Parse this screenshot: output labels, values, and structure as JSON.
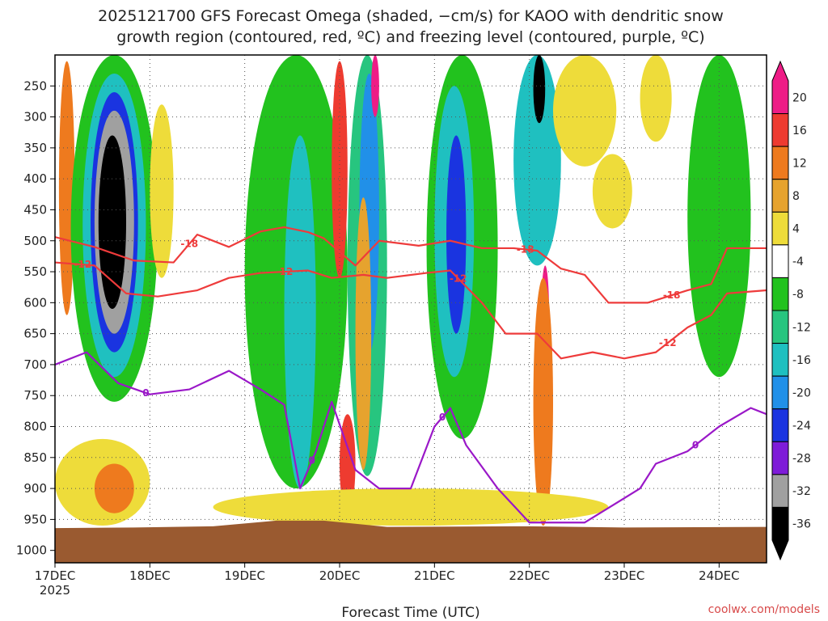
{
  "chart_data": {
    "type": "heatmap",
    "title_lines": [
      "2025121700 GFS Forecast Omega (shaded, −cm/s) for KAOO with dendritic snow",
      "growth region (contoured, red, ºC) and freezing level (contoured, purple, ºC)"
    ],
    "xlabel": "Forecast Time (UTC)",
    "ylabel": "",
    "credit": "coolwx.com/models",
    "x_tick_labels": [
      "17DEC",
      "18DEC",
      "19DEC",
      "20DEC",
      "21DEC",
      "22DEC",
      "23DEC",
      "24DEC"
    ],
    "x_year_label": "2025",
    "xlim_hours": [
      0,
      180
    ],
    "x_tick_hours": [
      0,
      24,
      48,
      72,
      96,
      120,
      144,
      168
    ],
    "y_tick_labels": [
      "250",
      "300",
      "350",
      "400",
      "450",
      "500",
      "550",
      "600",
      "650",
      "700",
      "750",
      "800",
      "850",
      "900",
      "950",
      "1000"
    ],
    "y_ticks_hpa": [
      250,
      300,
      350,
      400,
      450,
      500,
      550,
      600,
      650,
      700,
      750,
      800,
      850,
      900,
      950,
      1000
    ],
    "ylim_hpa": [
      200,
      1020
    ],
    "y_reversed": true,
    "grid": true,
    "colorbar": {
      "labels": [
        "20",
        "16",
        "12",
        "8",
        "4",
        "-4",
        "-8",
        "-12",
        "-16",
        "-20",
        "-24",
        "-28",
        "-32",
        "-36"
      ],
      "colors": [
        "#ee1c86",
        "#ee3b30",
        "#ee7a1e",
        "#e6a32e",
        "#eedc3a",
        "#ffffff",
        "#22c21e",
        "#27c57f",
        "#1fc0c0",
        "#2190e8",
        "#1a34e0",
        "#7e1bd8",
        "#a0a0a0",
        "#000000"
      ]
    },
    "ground_color": "#9a5a30",
    "omega_shading_bands": [
      {
        "t_hours": [
          1,
          5
        ],
        "p_hpa": [
          210,
          620
        ],
        "value": 12
      },
      {
        "t_hours": [
          4,
          26
        ],
        "p_hpa": [
          200,
          760
        ],
        "value": -8
      },
      {
        "t_hours": [
          7,
          23
        ],
        "p_hpa": [
          230,
          720
        ],
        "value": -16
      },
      {
        "t_hours": [
          9,
          21
        ],
        "p_hpa": [
          260,
          680
        ],
        "value": -24
      },
      {
        "t_hours": [
          10,
          20
        ],
        "p_hpa": [
          290,
          650
        ],
        "value": -32
      },
      {
        "t_hours": [
          11,
          18
        ],
        "p_hpa": [
          330,
          610
        ],
        "value": -36
      },
      {
        "t_hours": [
          24,
          30
        ],
        "p_hpa": [
          280,
          560
        ],
        "value": 4
      },
      {
        "t_hours": [
          48,
          74
        ],
        "p_hpa": [
          200,
          900
        ],
        "value": -8
      },
      {
        "t_hours": [
          58,
          66
        ],
        "p_hpa": [
          330,
          900
        ],
        "value": -16
      },
      {
        "t_hours": [
          70,
          74
        ],
        "p_hpa": [
          210,
          560
        ],
        "value": 16
      },
      {
        "t_hours": [
          74,
          84
        ],
        "p_hpa": [
          200,
          880
        ],
        "value": -12
      },
      {
        "t_hours": [
          77,
          82
        ],
        "p_hpa": [
          230,
          680
        ],
        "value": -20
      },
      {
        "t_hours": [
          80,
          82
        ],
        "p_hpa": [
          200,
          300
        ],
        "value": 20
      },
      {
        "t_hours": [
          76,
          80
        ],
        "p_hpa": [
          430,
          870
        ],
        "value": 8
      },
      {
        "t_hours": [
          72,
          76
        ],
        "p_hpa": [
          780,
          940
        ],
        "value": 16
      },
      {
        "t_hours": [
          94,
          112
        ],
        "p_hpa": [
          200,
          820
        ],
        "value": -8
      },
      {
        "t_hours": [
          96,
          106
        ],
        "p_hpa": [
          250,
          720
        ],
        "value": -16
      },
      {
        "t_hours": [
          99,
          104
        ],
        "p_hpa": [
          330,
          650
        ],
        "value": -24
      },
      {
        "t_hours": [
          116,
          128
        ],
        "p_hpa": [
          200,
          540
        ],
        "value": -16
      },
      {
        "t_hours": [
          121,
          124
        ],
        "p_hpa": [
          200,
          310
        ],
        "value": -36
      },
      {
        "t_hours": [
          123,
          125
        ],
        "p_hpa": [
          540,
          700
        ],
        "value": 20
      },
      {
        "t_hours": [
          121,
          126
        ],
        "p_hpa": [
          560,
          960
        ],
        "value": 12
      },
      {
        "t_hours": [
          126,
          142
        ],
        "p_hpa": [
          200,
          380
        ],
        "value": 4
      },
      {
        "t_hours": [
          136,
          146
        ],
        "p_hpa": [
          360,
          480
        ],
        "value": 4
      },
      {
        "t_hours": [
          148,
          156
        ],
        "p_hpa": [
          200,
          340
        ],
        "value": 4
      },
      {
        "t_hours": [
          160,
          176
        ],
        "p_hpa": [
          200,
          720
        ],
        "value": -8
      },
      {
        "t_hours": [
          0,
          24
        ],
        "p_hpa": [
          820,
          960
        ],
        "value": 4
      },
      {
        "t_hours": [
          10,
          20
        ],
        "p_hpa": [
          860,
          940
        ],
        "value": 12
      },
      {
        "t_hours": [
          40,
          140
        ],
        "p_hpa": [
          900,
          960
        ],
        "value": 4
      }
    ],
    "ground_pressure_hpa": [
      {
        "t": 0,
        "p": 964
      },
      {
        "t": 20,
        "p": 963
      },
      {
        "t": 40,
        "p": 961
      },
      {
        "t": 56,
        "p": 952
      },
      {
        "t": 68,
        "p": 952
      },
      {
        "t": 84,
        "p": 962
      },
      {
        "t": 120,
        "p": 961
      },
      {
        "t": 144,
        "p": 963
      },
      {
        "t": 180,
        "p": 962
      }
    ],
    "contours": [
      {
        "level": "-18",
        "color": "#ee3b3b",
        "label_at_hours": [
          34,
          119,
          156
        ],
        "points": [
          {
            "t": 0,
            "p": 494
          },
          {
            "t": 10,
            "p": 510
          },
          {
            "t": 20,
            "p": 532
          },
          {
            "t": 30,
            "p": 535
          },
          {
            "t": 36,
            "p": 490
          },
          {
            "t": 44,
            "p": 510
          },
          {
            "t": 52,
            "p": 485
          },
          {
            "t": 58,
            "p": 478
          },
          {
            "t": 64,
            "p": 486
          },
          {
            "t": 68,
            "p": 496
          },
          {
            "t": 76,
            "p": 540
          },
          {
            "t": 82,
            "p": 500
          },
          {
            "t": 92,
            "p": 508
          },
          {
            "t": 100,
            "p": 500
          },
          {
            "t": 108,
            "p": 512
          },
          {
            "t": 116,
            "p": 512
          },
          {
            "t": 122,
            "p": 516
          },
          {
            "t": 128,
            "p": 545
          },
          {
            "t": 134,
            "p": 555
          },
          {
            "t": 140,
            "p": 600
          },
          {
            "t": 150,
            "p": 600
          },
          {
            "t": 160,
            "p": 580
          },
          {
            "t": 166,
            "p": 570
          },
          {
            "t": 170,
            "p": 512
          },
          {
            "t": 180,
            "p": 512
          }
        ]
      },
      {
        "level": "-12",
        "color": "#ee3b3b",
        "label_at_hours": [
          7,
          58,
          102,
          155
        ],
        "points": [
          {
            "t": 0,
            "p": 535
          },
          {
            "t": 10,
            "p": 540
          },
          {
            "t": 18,
            "p": 585
          },
          {
            "t": 26,
            "p": 590
          },
          {
            "t": 36,
            "p": 580
          },
          {
            "t": 44,
            "p": 560
          },
          {
            "t": 52,
            "p": 552
          },
          {
            "t": 58,
            "p": 550
          },
          {
            "t": 64,
            "p": 548
          },
          {
            "t": 70,
            "p": 560
          },
          {
            "t": 78,
            "p": 555
          },
          {
            "t": 84,
            "p": 560
          },
          {
            "t": 94,
            "p": 552
          },
          {
            "t": 100,
            "p": 548
          },
          {
            "t": 108,
            "p": 600
          },
          {
            "t": 114,
            "p": 650
          },
          {
            "t": 122,
            "p": 650
          },
          {
            "t": 128,
            "p": 690
          },
          {
            "t": 136,
            "p": 680
          },
          {
            "t": 144,
            "p": 690
          },
          {
            "t": 152,
            "p": 680
          },
          {
            "t": 160,
            "p": 640
          },
          {
            "t": 166,
            "p": 620
          },
          {
            "t": 170,
            "p": 585
          },
          {
            "t": 180,
            "p": 580
          }
        ]
      },
      {
        "level": "0",
        "color": "#9a18c8",
        "label_at_hours": [
          23,
          65,
          98,
          162
        ],
        "points": [
          {
            "t": 0,
            "p": 700
          },
          {
            "t": 8,
            "p": 680
          },
          {
            "t": 16,
            "p": 730
          },
          {
            "t": 24,
            "p": 748
          },
          {
            "t": 34,
            "p": 740
          },
          {
            "t": 44,
            "p": 710
          },
          {
            "t": 52,
            "p": 740
          },
          {
            "t": 58,
            "p": 765
          },
          {
            "t": 62,
            "p": 900
          },
          {
            "t": 66,
            "p": 840
          },
          {
            "t": 70,
            "p": 760
          },
          {
            "t": 76,
            "p": 870
          },
          {
            "t": 82,
            "p": 900
          },
          {
            "t": 90,
            "p": 900
          },
          {
            "t": 96,
            "p": 800
          },
          {
            "t": 100,
            "p": 770
          },
          {
            "t": 104,
            "p": 830
          },
          {
            "t": 112,
            "p": 900
          },
          {
            "t": 120,
            "p": 955
          },
          {
            "t": 134,
            "p": 955
          },
          {
            "t": 148,
            "p": 900
          },
          {
            "t": 152,
            "p": 860
          },
          {
            "t": 160,
            "p": 840
          },
          {
            "t": 168,
            "p": 800
          },
          {
            "t": 176,
            "p": 770
          },
          {
            "t": 180,
            "p": 780
          }
        ]
      }
    ]
  }
}
